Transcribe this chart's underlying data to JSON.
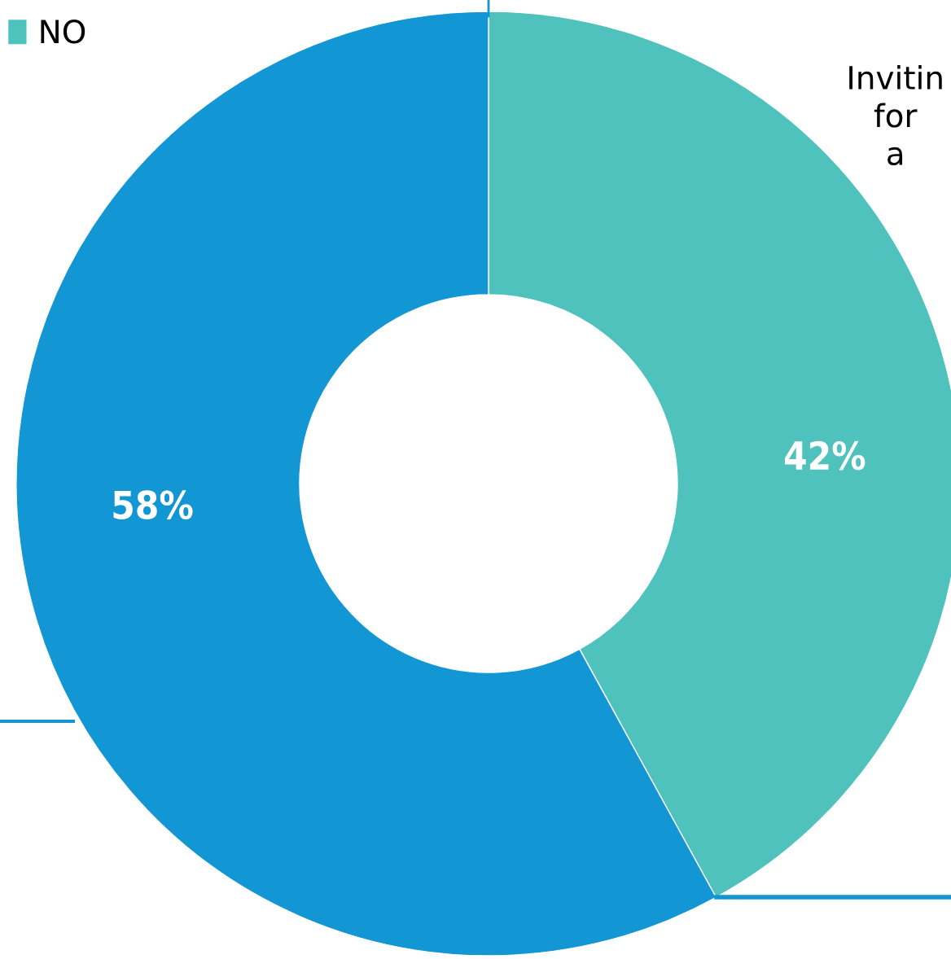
{
  "chart_data": {
    "type": "donut",
    "categories": [
      "NO",
      null
    ],
    "values": [
      42,
      58
    ],
    "colors": [
      "#4fc2bd",
      "#1296d4"
    ],
    "value_labels": [
      "42%",
      "58%"
    ],
    "legend": "top left",
    "annotations": [
      "Invitin\nfor\na"
    ]
  }
}
